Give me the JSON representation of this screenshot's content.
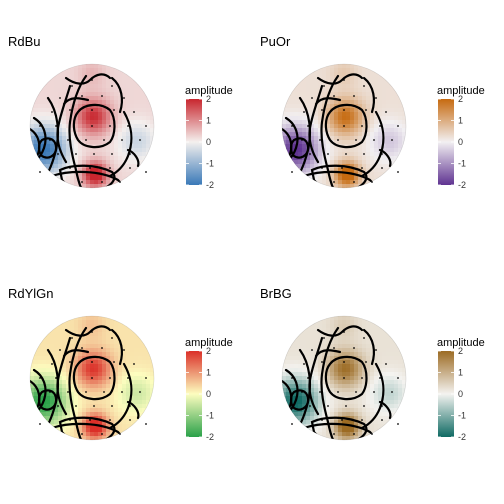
{
  "chart_data": [
    {
      "type": "heatmap",
      "title": "RdBu",
      "legend": {
        "title": "amplitude",
        "ticks": [
          2,
          1,
          0,
          -1,
          -2
        ],
        "placement": "right"
      },
      "palette": {
        "low": "#3a79b8",
        "mid": "#f4f0ee",
        "high": "#c8262e"
      }
    },
    {
      "type": "heatmap",
      "title": "PuOr",
      "legend": {
        "title": "amplitude",
        "ticks": [
          2,
          1,
          0,
          -1,
          -2
        ],
        "placement": "right"
      },
      "palette": {
        "low": "#5f3391",
        "mid": "#f2f0f2",
        "high": "#c66a0f"
      }
    },
    {
      "type": "heatmap",
      "title": "RdYlGn",
      "legend": {
        "title": "amplitude",
        "ticks": [
          2,
          1,
          0,
          -1,
          -2
        ],
        "placement": "right"
      },
      "palette": {
        "low": "#2aa149",
        "mid": "#fdfdbf",
        "high": "#db2f28"
      }
    },
    {
      "type": "heatmap",
      "title": "BrBG",
      "legend": {
        "title": "amplitude",
        "ticks": [
          2,
          1,
          0,
          -1,
          -2
        ],
        "placement": "right"
      },
      "palette": {
        "low": "#0f6a63",
        "mid": "#f4f3f0",
        "high": "#9c6b23"
      }
    }
  ]
}
